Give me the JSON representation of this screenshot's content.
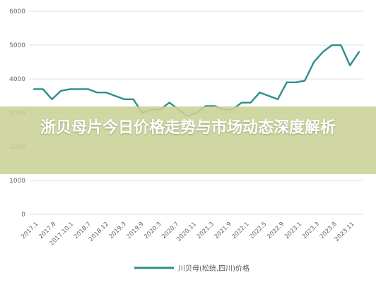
{
  "overlay": {
    "title": "浙贝母片今日价格走势与市场动态深度解析"
  },
  "chart_data": {
    "type": "line",
    "title": "",
    "xlabel": "",
    "ylabel": "",
    "ylim": [
      0,
      6000
    ],
    "y_ticks": [
      0,
      1000,
      2000,
      3000,
      4000,
      5000,
      6000
    ],
    "grid": true,
    "legend_position": "bottom",
    "line_color": "#2a8f8a",
    "x_tick_labels": [
      "2017.1",
      "2017.8",
      "2017.10.1",
      "2018.7",
      "2018.12",
      "2019.3",
      "2019.9",
      "2020.3",
      "2020.7",
      "2020.11",
      "2021.3",
      "2021.9",
      "2022.1",
      "2022.5",
      "2022.9",
      "2023.1",
      "2023.3",
      "2023.8",
      "2023.11"
    ],
    "series": [
      {
        "name": "川贝母(松统,四川)价格",
        "values": [
          3700,
          3700,
          3400,
          3650,
          3700,
          3700,
          3700,
          3600,
          3600,
          3500,
          3400,
          3400,
          3000,
          3100,
          3100,
          3300,
          3100,
          2900,
          3000,
          3200,
          3200,
          3100,
          3100,
          3300,
          3300,
          3600,
          3500,
          3400,
          3900,
          3900,
          3950,
          4500,
          4800,
          5000,
          5000,
          4400,
          4800
        ]
      }
    ]
  }
}
